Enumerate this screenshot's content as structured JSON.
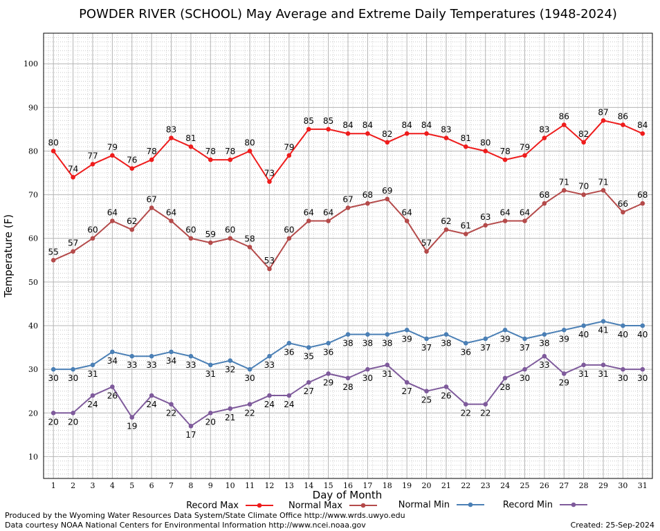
{
  "chart_data": {
    "type": "line",
    "title": "POWDER RIVER (SCHOOL) May Average and Extreme Daily Temperatures (1948-2024)",
    "xlabel": "Day of Month",
    "ylabel": "Temperature (F)",
    "ylim": [
      5,
      107
    ],
    "xlim": [
      0.5,
      31.5
    ],
    "yticks": [
      10,
      20,
      30,
      40,
      50,
      60,
      70,
      80,
      90,
      100
    ],
    "x": [
      1,
      2,
      3,
      4,
      5,
      6,
      7,
      8,
      9,
      10,
      11,
      12,
      13,
      14,
      15,
      16,
      17,
      18,
      19,
      20,
      21,
      22,
      23,
      24,
      25,
      26,
      27,
      28,
      29,
      30,
      31
    ],
    "grid": true,
    "legend_position": "bottom",
    "series": [
      {
        "name": "Record Max",
        "color": "#ee1c1c",
        "values": [
          80,
          74,
          77,
          79,
          76,
          78,
          83,
          81,
          78,
          78,
          80,
          73,
          79,
          85,
          85,
          84,
          84,
          82,
          84,
          84,
          83,
          81,
          80,
          78,
          79,
          83,
          86,
          82,
          87,
          86,
          84
        ],
        "label_side": "above"
      },
      {
        "name": "Normal Max",
        "color": "#b44a4a",
        "values": [
          55,
          57,
          60,
          64,
          62,
          67,
          64,
          60,
          59,
          60,
          58,
          53,
          60,
          64,
          64,
          67,
          68,
          69,
          64,
          57,
          62,
          61,
          63,
          64,
          64,
          68,
          71,
          70,
          71,
          66,
          68
        ],
        "label_side": "above"
      },
      {
        "name": "Normal Min",
        "color": "#4a7fb5",
        "values": [
          30,
          30,
          31,
          34,
          33,
          33,
          34,
          33,
          31,
          32,
          30,
          33,
          36,
          35,
          36,
          38,
          38,
          38,
          39,
          37,
          38,
          36,
          37,
          39,
          37,
          38,
          39,
          40,
          41,
          40,
          40
        ],
        "label_side": "below"
      },
      {
        "name": "Record Min",
        "color": "#7e5a9b",
        "values": [
          20,
          20,
          24,
          26,
          19,
          24,
          22,
          17,
          20,
          21,
          22,
          24,
          24,
          27,
          29,
          28,
          30,
          31,
          27,
          25,
          26,
          22,
          22,
          28,
          30,
          33,
          29,
          31,
          31,
          30,
          30
        ],
        "label_side": "below"
      }
    ]
  },
  "footer": {
    "produced_by": "Produced by the Wyoming Water Resources Data System/State Climate Office http://www.wrds.uwyo.edu",
    "courtesy": "Data courtesy NOAA National Centers for Environmental Information http://www.ncei.noaa.gov",
    "created": "Created:  25-Sep-2024"
  }
}
